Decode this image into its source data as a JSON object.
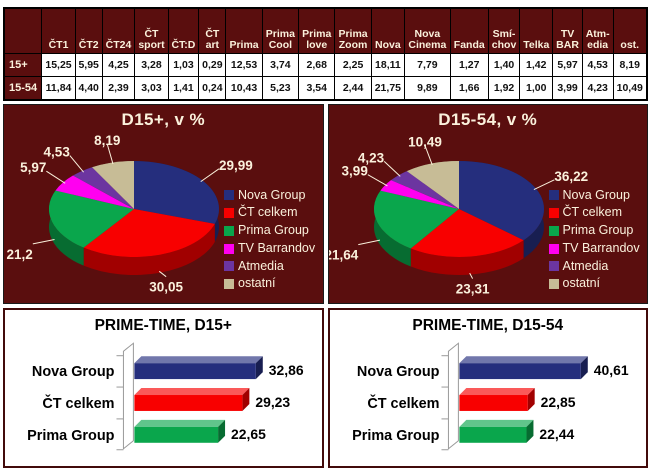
{
  "colors": {
    "page_bg": "#FFFFFF",
    "maroon": "#5A0E0E",
    "cream": "#FBF1DC",
    "table_border": "#000000",
    "panel_border": "#1A1A1A",
    "bar_panel_border": "#420A0A",
    "wall_fill": "#FFFFFF",
    "wall_stroke": "#999999",
    "nova_blue": "#252E7D",
    "ct_red": "#F80000",
    "prima_green": "#0AA64C",
    "barrandov_magenta": "#FF00F0",
    "atmedia_purple": "#6C35A0",
    "ostatni_tan": "#C7BC96"
  },
  "chart_data": [
    {
      "type": "table",
      "corner": "",
      "columns": [
        "ČT1",
        "ČT2",
        "ČT24",
        "ČT\nsport",
        "ČT:D",
        "ČT\nart",
        "Prima",
        "Prima\nCool",
        "Prima\nlove",
        "Prima\nZoom",
        "Nova",
        "Nova\nCinema",
        "Fanda",
        "Smí-\nchov",
        "Telka",
        "TV\nBAR",
        "Atm-\nedia",
        "ost."
      ],
      "rows": [
        {
          "label": "15+",
          "values": [
            "15,25",
            "5,95",
            "4,25",
            "3,28",
            "1,03",
            "0,29",
            "12,53",
            "3,74",
            "2,68",
            "2,25",
            "18,11",
            "7,79",
            "1,27",
            "1,40",
            "1,42",
            "5,97",
            "4,53",
            "8,19"
          ]
        },
        {
          "label": "15-54",
          "values": [
            "11,84",
            "4,40",
            "2,39",
            "3,03",
            "1,41",
            "0,24",
            "10,43",
            "5,23",
            "3,54",
            "2,44",
            "21,75",
            "9,89",
            "1,66",
            "1,92",
            "1,00",
            "3,99",
            "4,23",
            "10,49"
          ]
        }
      ]
    },
    {
      "type": "pie",
      "title": "D15+, v %",
      "labels": [
        "Nova Group",
        "ČT celkem",
        "Prima Group",
        "TV Barrandov",
        "Atmedia",
        "ostatní"
      ],
      "values": [
        29.99,
        30.05,
        21.2,
        5.97,
        4.53,
        8.19
      ],
      "value_labels": [
        "29,99",
        "30,05",
        "21,2",
        "5,97",
        "4,53",
        "8,19"
      ],
      "colors": [
        "#252E7D",
        "#F80000",
        "#0AA64C",
        "#FF00F0",
        "#6C35A0",
        "#C7BC96"
      ],
      "legend_position": "right",
      "start_angle": "top",
      "direction": "clockwise"
    },
    {
      "type": "pie",
      "title": "D15-54, v %",
      "labels": [
        "Nova Group",
        "ČT celkem",
        "Prima Group",
        "TV Barrandov",
        "Atmedia",
        "ostatní"
      ],
      "values": [
        36.22,
        23.31,
        21.64,
        3.99,
        4.23,
        10.49
      ],
      "value_labels": [
        "36,22",
        "23,31",
        "21,64",
        "3,99",
        "4,23",
        "10,49"
      ],
      "colors": [
        "#252E7D",
        "#F80000",
        "#0AA64C",
        "#FF00F0",
        "#6C35A0",
        "#C7BC96"
      ],
      "legend_position": "right",
      "start_angle": "top",
      "direction": "clockwise"
    },
    {
      "type": "bar",
      "title": "PRIME-TIME, D15+",
      "orientation": "horizontal",
      "categories": [
        "Nova Group",
        "ČT celkem",
        "Prima Group"
      ],
      "values": [
        32.86,
        29.23,
        22.65
      ],
      "value_labels": [
        "32,86",
        "29,23",
        "22,65"
      ],
      "colors": [
        "#252E7D",
        "#F80000",
        "#0AA64C"
      ]
    },
    {
      "type": "bar",
      "title": "PRIME-TIME, D15-54",
      "orientation": "horizontal",
      "categories": [
        "Nova Group",
        "ČT celkem",
        "Prima Group"
      ],
      "values": [
        40.61,
        22.85,
        22.44
      ],
      "value_labels": [
        "40,61",
        "22,85",
        "22,44"
      ],
      "colors": [
        "#252E7D",
        "#F80000",
        "#0AA64C"
      ]
    }
  ]
}
